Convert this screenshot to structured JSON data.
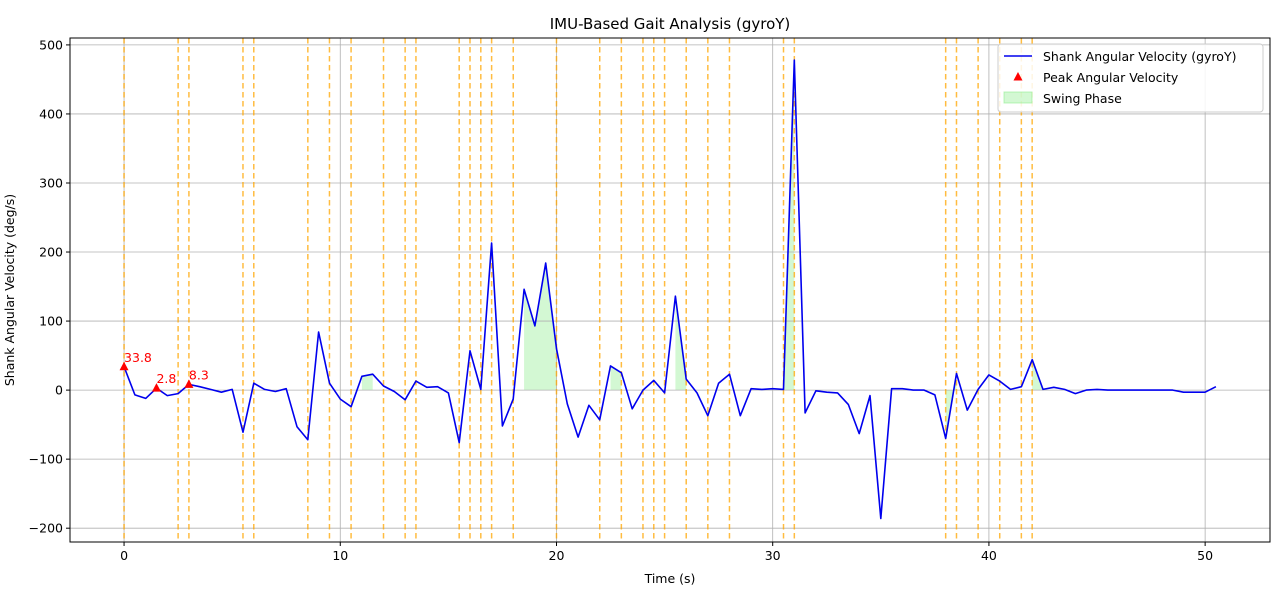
{
  "chart_data": {
    "type": "line",
    "title": "IMU-Based Gait Analysis (gyroY)",
    "xlabel": "Time (s)",
    "ylabel": "Shank Angular Velocity (deg/s)",
    "xlim": [
      -2.5,
      53.0
    ],
    "ylim": [
      -220,
      510
    ],
    "xticks": [
      0,
      10,
      20,
      30,
      40,
      50
    ],
    "yticks": [
      -200,
      -100,
      0,
      100,
      200,
      300,
      400,
      500
    ],
    "grid": true,
    "legend_position": "top-right",
    "colors": {
      "line": "#0000ee",
      "peak": "#ff0000",
      "swing_fill": "#90ee90",
      "event_line": "#ffa500",
      "grid": "#b0b0b0"
    },
    "series": [
      {
        "name": "Shank Angular Velocity (gyroY)",
        "style": "line",
        "x": [
          0,
          0.5,
          1,
          1.5,
          2,
          2.5,
          3,
          3.5,
          4,
          4.5,
          5,
          5.5,
          6,
          6.5,
          7,
          7.5,
          8,
          8.5,
          9,
          9.5,
          10,
          10.5,
          11,
          11.5,
          12,
          12.5,
          13,
          13.5,
          14,
          14.5,
          15,
          15.5,
          16,
          16.5,
          17,
          17.5,
          18,
          18.5,
          19,
          19.5,
          20,
          20.5,
          21,
          21.5,
          22,
          22.5,
          23,
          23.5,
          24,
          24.5,
          25,
          25.5,
          26,
          26.5,
          27,
          27.5,
          28,
          28.5,
          29,
          29.5,
          30,
          30.5,
          31,
          31.5,
          32,
          32.5,
          33,
          33.5,
          34,
          34.5,
          35,
          35.5,
          36,
          36.5,
          37,
          37.5,
          38,
          38.5,
          39,
          39.5,
          40,
          40.5,
          41,
          41.5,
          42,
          42.5,
          43,
          43.5,
          44,
          44.5,
          45,
          45.5,
          46,
          46.5,
          47,
          47.5,
          48,
          48.5,
          49,
          49.5,
          50,
          50.5
        ],
        "y": [
          33.8,
          -7,
          -12,
          2.8,
          -8,
          -5,
          8.3,
          5,
          1,
          -3,
          1,
          -61,
          10,
          1,
          -2,
          2,
          -53,
          -72,
          84,
          10,
          -13,
          -24,
          20,
          23,
          6,
          -2,
          -14,
          13,
          4,
          5,
          -4,
          -76,
          57,
          1,
          213,
          -52,
          -13,
          146,
          93,
          184,
          60,
          -20,
          -68,
          -22,
          -43,
          35,
          25,
          -27,
          0,
          14,
          -4,
          136,
          16,
          -4,
          -37,
          10,
          23,
          -37,
          2,
          1,
          2,
          1,
          478,
          -33,
          -1,
          -3,
          -4,
          -21,
          -63,
          -8,
          -186,
          2,
          2,
          0,
          0,
          -7,
          -70,
          24,
          -29,
          1,
          22,
          13,
          1,
          5,
          44,
          1,
          4,
          1,
          -5,
          0,
          1,
          0,
          0,
          0,
          0,
          0,
          0,
          0,
          -3,
          -3,
          -3,
          5
        ]
      },
      {
        "name": "Peak Angular Velocity",
        "style": "marker",
        "x": [
          0,
          1.5,
          3
        ],
        "y": [
          33.8,
          2.8,
          8.3
        ],
        "labels": [
          "33.8",
          "2.8",
          "8.3"
        ]
      }
    ],
    "swing_phase": {
      "name": "Swing Phase",
      "intervals": [
        [
          11,
          11.5
        ],
        [
          18.5,
          20
        ],
        [
          22.5,
          23
        ],
        [
          25.5,
          26
        ],
        [
          30.5,
          31
        ],
        [
          38,
          38.5
        ],
        [
          42,
          42.5
        ]
      ]
    },
    "event_lines_x": [
      0,
      2.5,
      3,
      5.5,
      6,
      8.5,
      9.5,
      10.5,
      12,
      13,
      13.5,
      15.5,
      16,
      16.5,
      17,
      18,
      20,
      22,
      23,
      24,
      24.5,
      25,
      26,
      27,
      28,
      30.5,
      31,
      38,
      38.5,
      39.5,
      40.5,
      41.5,
      42
    ]
  }
}
